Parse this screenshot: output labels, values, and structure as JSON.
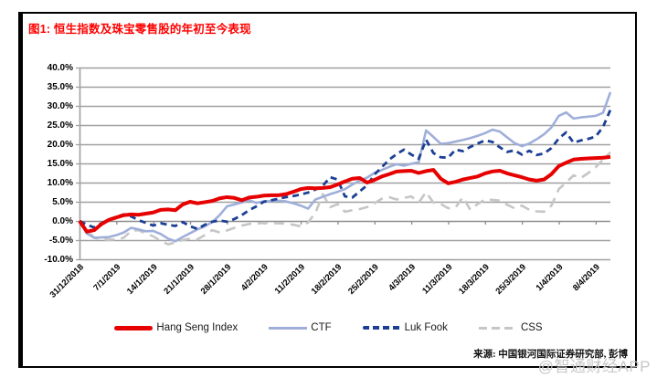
{
  "header": {
    "title": "图1: 恒生指数及珠宝零售股的年初至今表现"
  },
  "footer": {
    "source": "来源: 中国银河国际证券研究部, 彭博",
    "watermark": "@智通财经APP"
  },
  "colors": {
    "title_red": "#ff0000",
    "grid": "#a0a0a0",
    "zero_axis": "#8c8c8c",
    "axis_text": "#000000",
    "hang_seng": "#e60000",
    "ctf": "#9fafd9",
    "luk_fook": "#1b3f94",
    "css": "#c6c6c6"
  },
  "chart_data": {
    "type": "line",
    "grid": true,
    "legend_position": "bottom",
    "ylim": [
      -10,
      40
    ],
    "y_tick_step": 5,
    "y_tick_labels": [
      "40.0%",
      "35.0%",
      "30.0%",
      "25.0%",
      "20.0%",
      "15.0%",
      "10.0%",
      "5.0%",
      "0.0%",
      "-5.0%",
      "-10.0%"
    ],
    "x_tick_labels": [
      "31/12/2018",
      "7/1/2019",
      "14/1/2019",
      "21/1/2019",
      "28/1/2019",
      "4/2/2019",
      "11/2/2019",
      "18/2/2019",
      "25/2/2019",
      "4/3/2019",
      "11/3/2019",
      "18/3/2019",
      "25/3/2019",
      "1/4/2019",
      "8/4/2019"
    ],
    "points_per_tick": 5,
    "ylabel": "",
    "xlabel": "",
    "series": [
      {
        "name": "Hang Seng Index",
        "color": "#e60000",
        "width": 4,
        "dash": "solid",
        "values": [
          0.0,
          -2.8,
          -2.4,
          -0.8,
          0.3,
          0.9,
          1.5,
          1.7,
          1.6,
          1.9,
          2.2,
          2.9,
          3.0,
          2.8,
          4.3,
          5.0,
          4.6,
          4.9,
          5.2,
          5.9,
          6.2,
          6.0,
          5.4,
          6.1,
          6.3,
          6.6,
          6.7,
          6.7,
          7.0,
          7.6,
          8.3,
          8.6,
          8.5,
          8.6,
          8.8,
          9.5,
          10.3,
          11.0,
          11.2,
          10.0,
          10.7,
          11.6,
          12.2,
          12.9,
          13.0,
          13.1,
          12.5,
          13.0,
          13.3,
          11.0,
          9.8,
          10.2,
          10.8,
          11.2,
          11.6,
          12.4,
          12.9,
          13.1,
          12.4,
          11.9,
          11.4,
          10.8,
          10.5,
          10.8,
          12.2,
          14.3,
          15.2,
          16.0,
          16.2,
          16.3,
          16.4,
          16.5,
          16.7
        ]
      },
      {
        "name": "CTF",
        "color": "#9fafd9",
        "width": 2.6,
        "dash": "solid",
        "values": [
          0.0,
          -3.3,
          -4.4,
          -4.3,
          -4.2,
          -3.7,
          -3.0,
          -1.8,
          -2.2,
          -2.7,
          -2.6,
          -3.4,
          -4.6,
          -5.3,
          -4.2,
          -3.2,
          -2.2,
          -1.4,
          -0.3,
          1.5,
          3.8,
          4.3,
          4.8,
          5.4,
          4.7,
          5.1,
          5.2,
          5.3,
          5.1,
          4.6,
          4.0,
          3.2,
          5.6,
          6.3,
          7.0,
          7.6,
          8.3,
          9.5,
          10.5,
          11.3,
          12.5,
          13.3,
          14.1,
          14.8,
          14.4,
          14.9,
          15.3,
          23.6,
          21.9,
          20.1,
          20.3,
          20.7,
          21.1,
          21.6,
          22.2,
          22.9,
          23.8,
          23.3,
          21.8,
          20.3,
          19.5,
          20.2,
          21.3,
          22.6,
          24.4,
          27.4,
          28.3,
          26.7,
          27.0,
          27.2,
          27.4,
          28.2,
          33.6
        ]
      },
      {
        "name": "Luk Fook",
        "color": "#1b3f94",
        "width": 2.8,
        "dash": "dashed",
        "values": [
          0.0,
          -1.0,
          -1.7,
          -0.6,
          0.4,
          1.0,
          1.7,
          1.2,
          0.2,
          -0.5,
          -1.2,
          -0.6,
          -1.0,
          -1.3,
          -0.3,
          -1.4,
          -2.1,
          -1.0,
          -0.2,
          0.1,
          -0.2,
          0.5,
          1.5,
          2.8,
          3.8,
          5.0,
          5.4,
          5.8,
          6.2,
          6.5,
          6.9,
          7.4,
          8.2,
          9.2,
          11.4,
          10.8,
          6.4,
          6.1,
          7.7,
          9.3,
          12.1,
          14.0,
          16.0,
          17.4,
          18.6,
          17.3,
          16.2,
          21.2,
          17.7,
          16.6,
          16.5,
          18.6,
          18.2,
          19.3,
          20.2,
          21.0,
          20.6,
          19.2,
          18.0,
          18.4,
          17.3,
          18.3,
          17.2,
          17.6,
          19.0,
          21.5,
          23.1,
          20.4,
          21.0,
          21.4,
          22.0,
          24.5,
          29.0
        ]
      },
      {
        "name": "CSS",
        "color": "#c6c6c6",
        "width": 2.6,
        "dash": "long-dash",
        "values": [
          0.0,
          -2.5,
          -4.4,
          -4.8,
          -4.9,
          -4.8,
          -4.4,
          -2.6,
          -2.4,
          -3.3,
          -4.0,
          -5.2,
          -6.1,
          -5.6,
          -5.0,
          -4.6,
          -4.8,
          -3.7,
          -2.4,
          -3.0,
          -2.5,
          -1.8,
          -1.2,
          -0.8,
          -0.7,
          -0.5,
          -0.6,
          -0.6,
          -0.7,
          -1.0,
          -1.4,
          -0.4,
          2.1,
          7.0,
          3.6,
          4.4,
          2.4,
          2.8,
          3.1,
          3.6,
          4.6,
          5.8,
          6.2,
          5.6,
          6.0,
          6.4,
          4.8,
          7.5,
          4.8,
          4.4,
          3.3,
          3.5,
          6.2,
          2.9,
          4.4,
          5.6,
          5.5,
          5.3,
          4.2,
          3.3,
          4.0,
          2.9,
          2.5,
          2.4,
          4.0,
          8.3,
          10.0,
          11.9,
          11.2,
          12.5,
          14.0,
          16.0,
          17.9
        ]
      }
    ]
  }
}
